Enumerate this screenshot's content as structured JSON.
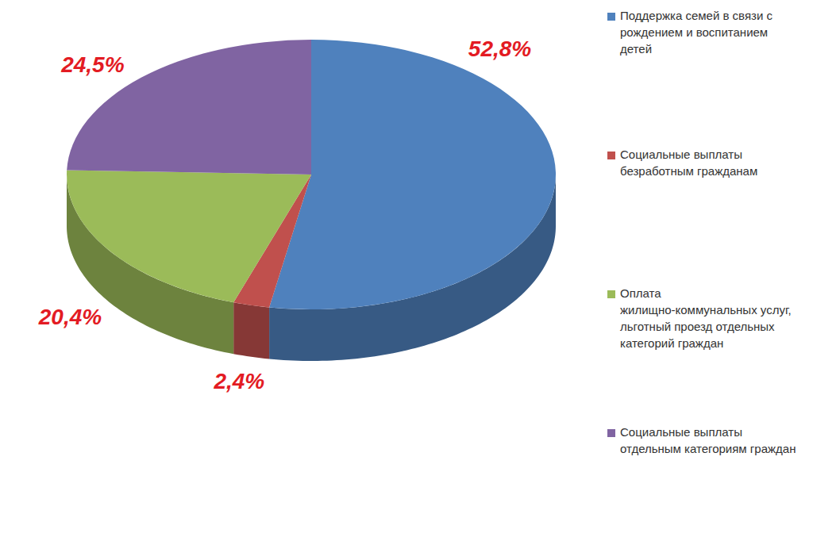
{
  "chart_data": {
    "type": "pie",
    "categories": [
      "Поддержка семей в связи с рождением и воспитанием детей",
      "Социальные выплаты безработным гражданам",
      "Оплата жилищно-коммунальных услуг, льготный проезд отдельных категорий граждан",
      "Социальные выплаты отдельным категориям граждан"
    ],
    "values": [
      52.8,
      2.4,
      20.4,
      24.5
    ],
    "value_labels": [
      "52,8%",
      "2,4%",
      "20,4%",
      "24,5%"
    ],
    "colors": [
      "#4f81bd",
      "#c0504d",
      "#9bbb59",
      "#8064a2"
    ],
    "data_labels": true,
    "legend": "right"
  }
}
